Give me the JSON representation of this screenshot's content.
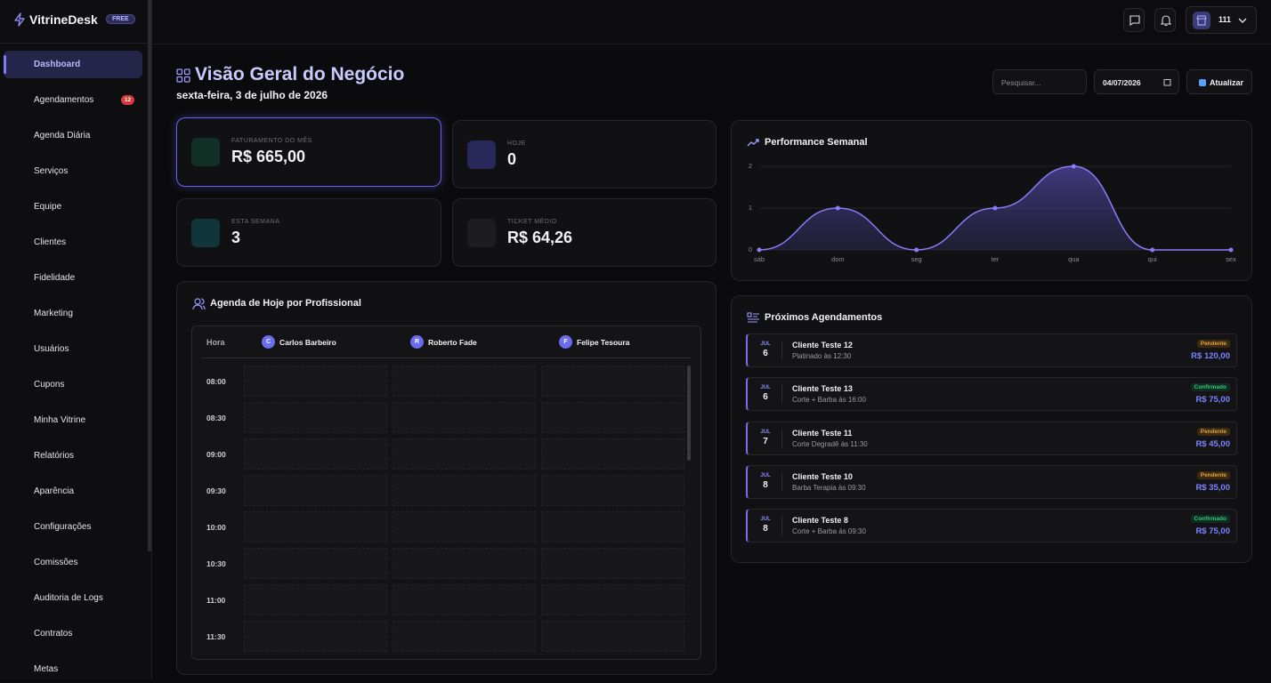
{
  "sidebar": {
    "brand": "VitrineDesk",
    "plan": "FREE",
    "items": [
      {
        "label": "Dashboard"
      },
      {
        "label": "Agendamentos",
        "badge": "12"
      },
      {
        "label": "Agenda Diária"
      },
      {
        "label": "Serviços"
      },
      {
        "label": "Equipe"
      },
      {
        "label": "Clientes"
      },
      {
        "label": "Fidelidade"
      },
      {
        "label": "Marketing"
      },
      {
        "label": "Usuários"
      },
      {
        "label": "Cupons"
      },
      {
        "label": "Minha Vitrine"
      },
      {
        "label": "Relatórios"
      },
      {
        "label": "Aparência"
      },
      {
        "label": "Configurações"
      },
      {
        "label": "Comissões"
      },
      {
        "label": "Auditoria de Logs"
      },
      {
        "label": "Contratos"
      },
      {
        "label": "Metas"
      }
    ]
  },
  "header": {
    "user": "111"
  },
  "page": {
    "title": "Visão Geral do Negócio",
    "date": "sexta-feira, 3 de julho de 2026",
    "search_placeholder": "Pesquisar...",
    "date_input": "04/07/2026",
    "refresh": "Atualizar"
  },
  "stats": [
    {
      "label": "FATURAMENTO DO MÊS",
      "value": "R$ 665,00"
    },
    {
      "label": "HOJE",
      "value": "0"
    },
    {
      "label": "ESTA SEMANA",
      "value": "3"
    },
    {
      "label": "TICKET MÉDIO",
      "value": "R$ 64,26"
    }
  ],
  "chart_data": {
    "type": "line",
    "title": "Performance Semanal",
    "categories": [
      "sáb",
      "dom",
      "seg",
      "ter",
      "qua",
      "qui",
      "sex"
    ],
    "values": [
      0,
      1,
      0,
      1,
      2,
      0,
      0
    ],
    "color": "#8b7cf6",
    "ylim": [
      0,
      2
    ],
    "yticks": [
      0,
      1,
      2
    ],
    "grid": true
  },
  "schedule": {
    "title": "Agenda de Hoje por Profissional",
    "hour_header": "Hora",
    "professionals": [
      {
        "initial": "C",
        "name": "Carlos Barbeiro"
      },
      {
        "initial": "R",
        "name": "Roberto Fade"
      },
      {
        "initial": "F",
        "name": "Felipe Tesoura"
      }
    ],
    "times": [
      "08:00",
      "08:30",
      "09:00",
      "09:30",
      "10:00",
      "10:30",
      "11:00",
      "11:30"
    ]
  },
  "upcoming": {
    "title": "Próximos Agendamentos",
    "items": [
      {
        "month": "JUL",
        "day": "6",
        "client": "Cliente Teste 12",
        "service": "Platinado às 12:30",
        "status": "Pendente",
        "price": "R$ 120,00"
      },
      {
        "month": "JUL",
        "day": "6",
        "client": "Cliente Teste 13",
        "service": "Corte + Barba às 16:00",
        "status": "Confirmado",
        "price": "R$ 75,00"
      },
      {
        "month": "JUL",
        "day": "7",
        "client": "Cliente Teste 11",
        "service": "Corte Degradê às 11:30",
        "status": "Pendente",
        "price": "R$ 45,00"
      },
      {
        "month": "JUL",
        "day": "8",
        "client": "Cliente Teste 10",
        "service": "Barba Terapia às 09:30",
        "status": "Pendente",
        "price": "R$ 35,00"
      },
      {
        "month": "JUL",
        "day": "8",
        "client": "Cliente Teste 8",
        "service": "Corte + Barba às 09:30",
        "status": "Confirmado",
        "price": "R$ 75,00"
      }
    ]
  }
}
